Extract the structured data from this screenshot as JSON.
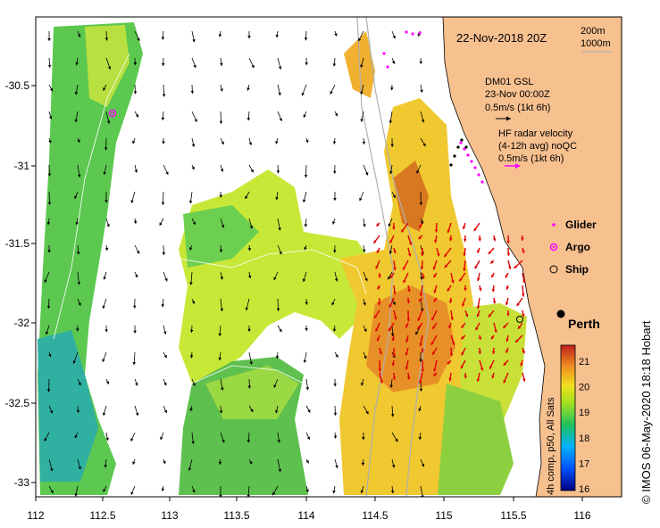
{
  "title": "22-Nov-2018 20Z",
  "depth_legend": [
    "200m",
    "1000m"
  ],
  "glider_info": {
    "label": "DM01 GSL",
    "time": "23-Nov 00:00Z",
    "scale": "0.5m/s (1kt 6h)"
  },
  "radar_info": {
    "line1": "HF radar velocity",
    "line2": "(4-12h avg) noQC",
    "scale": "0.5m/s (1kt 6h)"
  },
  "legend": {
    "glider": "Glider",
    "argo": "Argo",
    "ship": "Ship"
  },
  "city": "Perth",
  "colorbar": {
    "label": "4h comp, p50, All Sats",
    "ticks": [
      "16",
      "17",
      "18",
      "19",
      "20",
      "21"
    ]
  },
  "credit": "© IMOS 06-May-2020 18:18 Hobart",
  "x_ticks": [
    "112",
    "112.5",
    "113",
    "113.5",
    "114",
    "114.5",
    "115",
    "115.5",
    "116"
  ],
  "y_ticks": [
    "-30.5",
    "-31",
    "-31.5",
    "-32",
    "-32.5",
    "-33"
  ],
  "colors": {
    "land": "#f7c08f",
    "glider": "#ff00ff",
    "radar_arrows": "#e00000",
    "currents": "#000000"
  }
}
